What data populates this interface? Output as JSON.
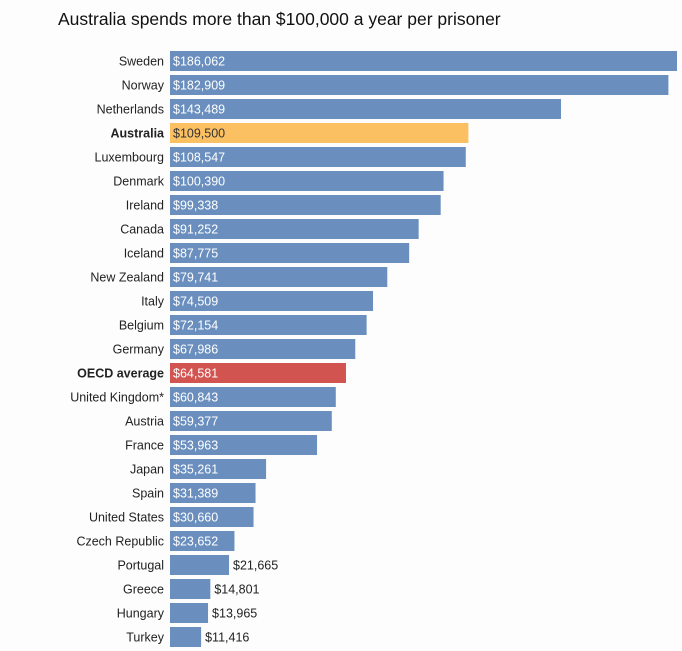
{
  "chart_data": {
    "type": "bar",
    "orientation": "horizontal",
    "title": "Australia spends more than $100,000 a year per prisoner",
    "xlabel": "",
    "ylabel": "",
    "grid": false,
    "colors": {
      "default": "#6a8fbf",
      "highlight": "#fbc062",
      "average": "#d25451"
    },
    "categories": [
      "Sweden",
      "Norway",
      "Netherlands",
      "Australia",
      "Luxembourg",
      "Denmark",
      "Ireland",
      "Canada",
      "Iceland",
      "New Zealand",
      "Italy",
      "Belgium",
      "Germany",
      "OECD average",
      "United Kingdom*",
      "Austria",
      "France",
      "Japan",
      "Spain",
      "United States",
      "Czech Republic",
      "Portugal",
      "Greece",
      "Hungary",
      "Turkey"
    ],
    "values": [
      186062,
      182909,
      143489,
      109500,
      108547,
      100390,
      99338,
      91252,
      87775,
      79741,
      74509,
      72154,
      67986,
      64581,
      60843,
      59377,
      53963,
      35261,
      31389,
      30660,
      23652,
      21665,
      14801,
      13965,
      11416
    ],
    "data_labels": [
      "$186,062",
      "$182,909",
      "$143,489",
      "$109,500",
      "$108,547",
      "$100,390",
      "$99,338",
      "$91,252",
      "$87,775",
      "$79,741",
      "$74,509",
      "$72,154",
      "$67,986",
      "$64,581",
      "$60,843",
      "$59,377",
      "$53,963",
      "$35,261",
      "$31,389",
      "$30,660",
      "$23,652",
      "$21,665",
      "$14,801",
      "$13,965",
      "$11,416"
    ],
    "highlighted": {
      "Australia": "highlight",
      "OECD average": "average"
    }
  }
}
